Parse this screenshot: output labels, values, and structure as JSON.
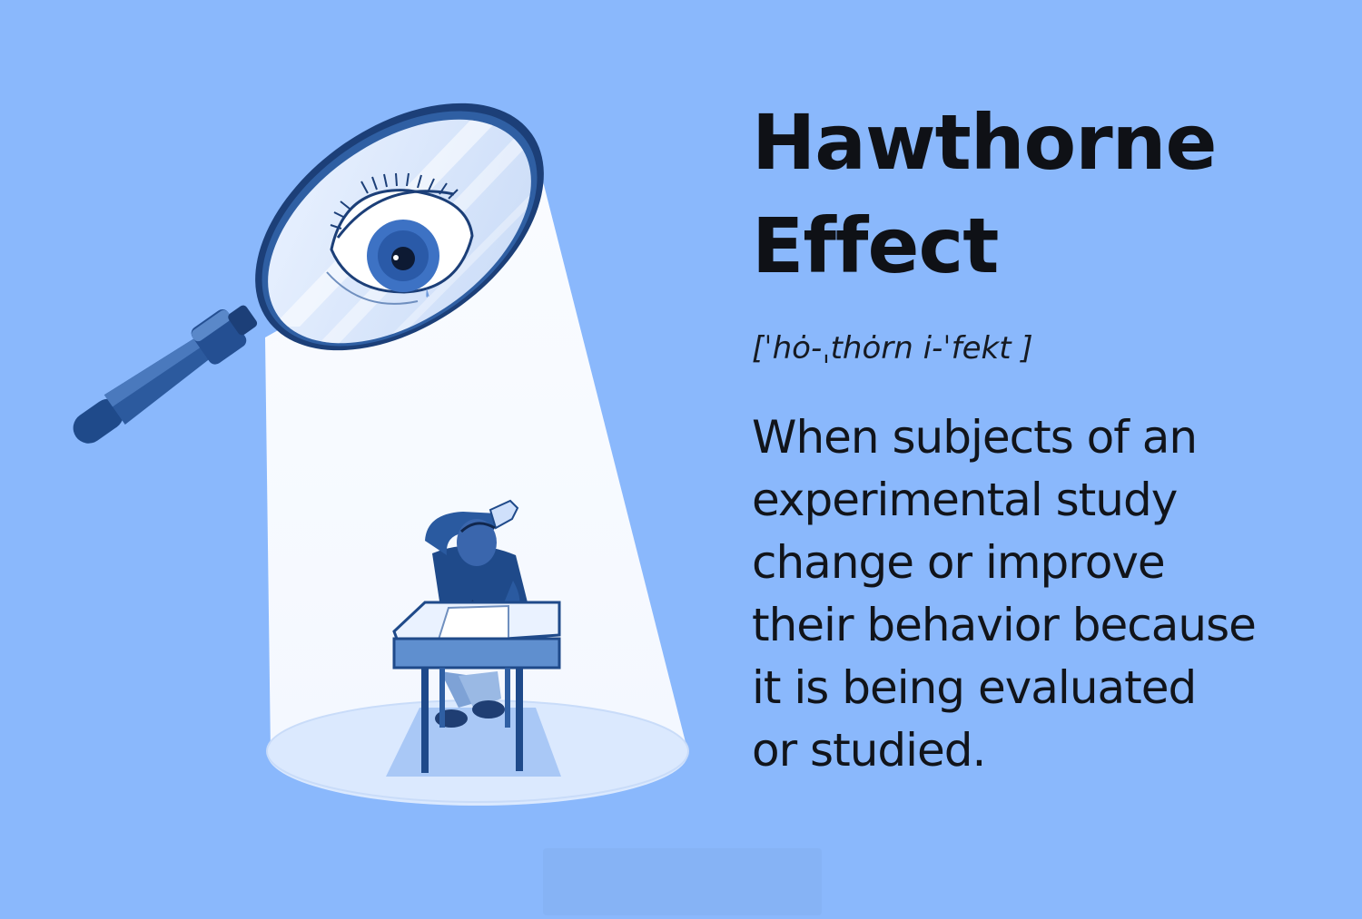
{
  "title": {
    "line1": "Hawthorne",
    "line2": "Effect"
  },
  "pronunciation": "[ˈhȯ-ˌthȯrn i-ˈfekt ]",
  "definition": {
    "lines": [
      "When subjects of an",
      "experimental study",
      "change or improve",
      "their behavior because",
      "it is being evaluated",
      "or studied."
    ]
  },
  "colors": {
    "background": "#8ab8fc",
    "spotlight": "#ffffff",
    "ink": "#1f4a8a",
    "text": "#111319"
  },
  "illustration": {
    "magnifier": "magnifying-glass-icon",
    "eye": "eye-icon",
    "student": "student-at-desk-icon"
  }
}
